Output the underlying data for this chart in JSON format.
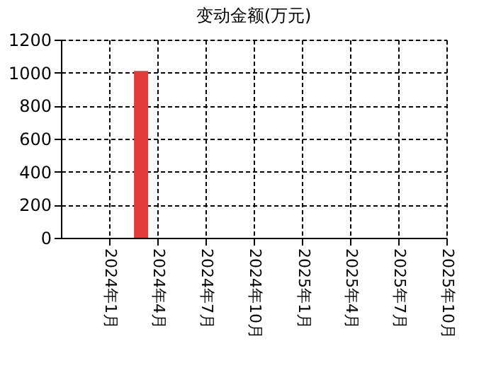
{
  "chart_data": {
    "type": "bar",
    "title": "变动金额(万元)",
    "x": [
      "2024-03-01"
    ],
    "series": [
      {
        "color": "#e23a3a",
        "values": [
          1010
        ]
      }
    ],
    "xlim": [
      "2023-10-01",
      "2025-10-01"
    ],
    "xticks": [
      {
        "value": "2024-01-01",
        "label": "2024年1月"
      },
      {
        "value": "2024-04-01",
        "label": "2024年4月"
      },
      {
        "value": "2024-07-01",
        "label": "2024年7月"
      },
      {
        "value": "2024-10-01",
        "label": "2024年10月"
      },
      {
        "value": "2025-01-01",
        "label": "2025年1月"
      },
      {
        "value": "2025-04-01",
        "label": "2025年4月"
      },
      {
        "value": "2025-07-01",
        "label": "2025年7月"
      },
      {
        "value": "2025-10-01",
        "label": "2025年10月"
      }
    ],
    "ylim": [
      0,
      1200
    ],
    "yticks": [
      0,
      200,
      400,
      600,
      800,
      1000,
      1200
    ],
    "grid": true
  }
}
